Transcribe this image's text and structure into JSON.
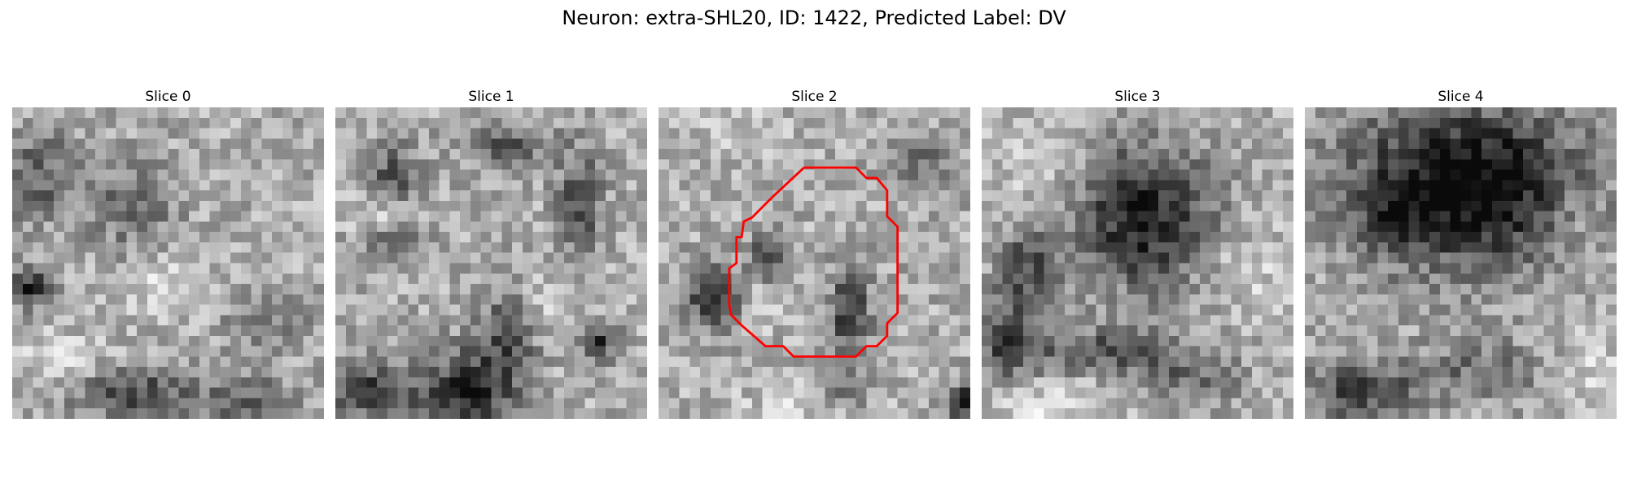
{
  "figure": {
    "title": "Neuron: extra-SHL20, ID: 1422, Predicted Label: DV"
  },
  "slices": [
    {
      "label": "Slice 0",
      "has_contour": false
    },
    {
      "label": "Slice 1",
      "has_contour": false
    },
    {
      "label": "Slice 2",
      "has_contour": true
    },
    {
      "label": "Slice 3",
      "has_contour": false
    },
    {
      "label": "Slice 4",
      "has_contour": false
    }
  ],
  "colors": {
    "contour": "#ff0000",
    "background": "#ffffff"
  }
}
